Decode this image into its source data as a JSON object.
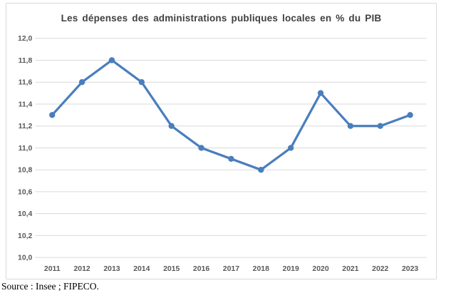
{
  "chart_data": {
    "type": "line",
    "title": "Les dépenses des administrations publiques locales en % du PIB",
    "categories": [
      "2011",
      "2012",
      "2013",
      "2014",
      "2015",
      "2016",
      "2017",
      "2018",
      "2019",
      "2020",
      "2021",
      "2022",
      "2023"
    ],
    "series": [
      {
        "values": [
          11.3,
          11.6,
          11.8,
          11.6,
          11.2,
          11.0,
          10.9,
          10.8,
          11.0,
          11.5,
          11.2,
          11.2,
          11.3
        ]
      }
    ],
    "xlabel": "",
    "ylabel": "",
    "ylim": [
      10.0,
      12.0
    ],
    "ytick_step": 0.2,
    "decimal_separator": ",",
    "grid": true,
    "legend_position": "none",
    "marker": "circle"
  },
  "colors": {
    "line": "#4a7ebc",
    "marker": "#4a7ebc",
    "gridline": "#d9d9d9",
    "frame_border": "#d9d9d9",
    "tick_label": "#595959",
    "title_text": "#404040"
  },
  "footer": {
    "source": "Source : Insee ; FIPECO."
  }
}
